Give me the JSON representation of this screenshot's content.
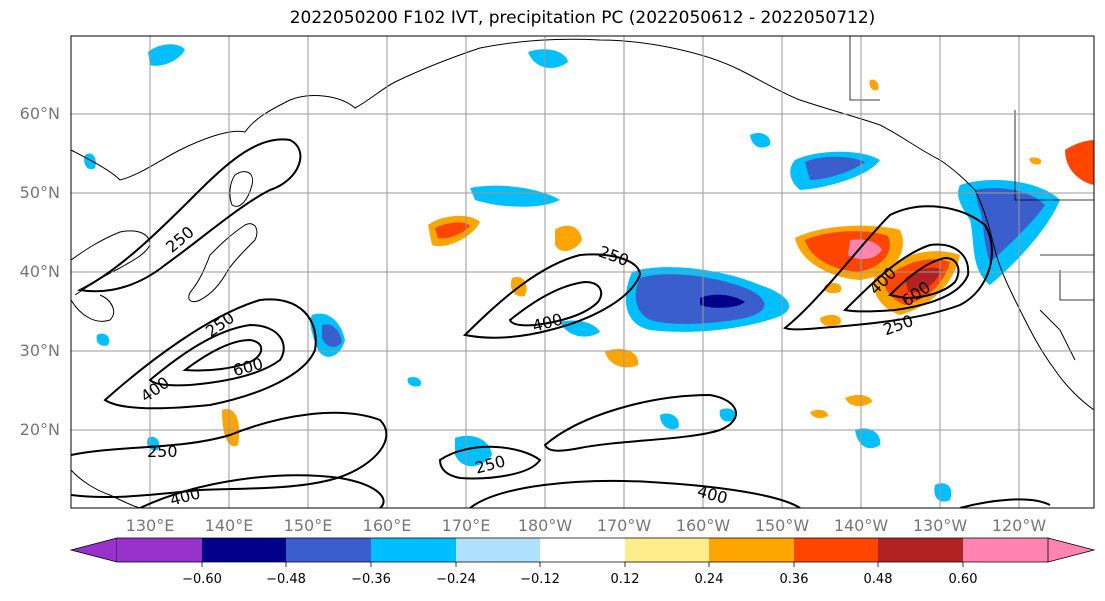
{
  "title": "2022050200 F102 IVT, precipitation PC (2022050612 - 2022050712)",
  "map": {
    "lat_labels": [
      "60°N",
      "50°N",
      "40°N",
      "30°N",
      "20°N"
    ],
    "lon_labels": [
      "130°E",
      "140°E",
      "150°E",
      "160°E",
      "170°E",
      "180°W",
      "170°W",
      "160°W",
      "150°W",
      "140°W",
      "130°W",
      "120°W"
    ],
    "contour_labels": [
      "250",
      "250",
      "600",
      "400",
      "250",
      "400",
      "400",
      "600",
      "250",
      "250",
      "250",
      "400",
      "400"
    ]
  },
  "colorbar": {
    "ticks": [
      "−0.60",
      "−0.48",
      "−0.36",
      "−0.24",
      "−0.12",
      "0.12",
      "0.24",
      "0.36",
      "0.48",
      "0.60"
    ],
    "colors": [
      "#9932cc",
      "#00008b",
      "#3a5fcd",
      "#00bfff",
      "#b0e2ff",
      "#ffffff",
      "#ffec8b",
      "#ffa500",
      "#ff4500",
      "#b22222",
      "#ff85b0"
    ]
  }
}
